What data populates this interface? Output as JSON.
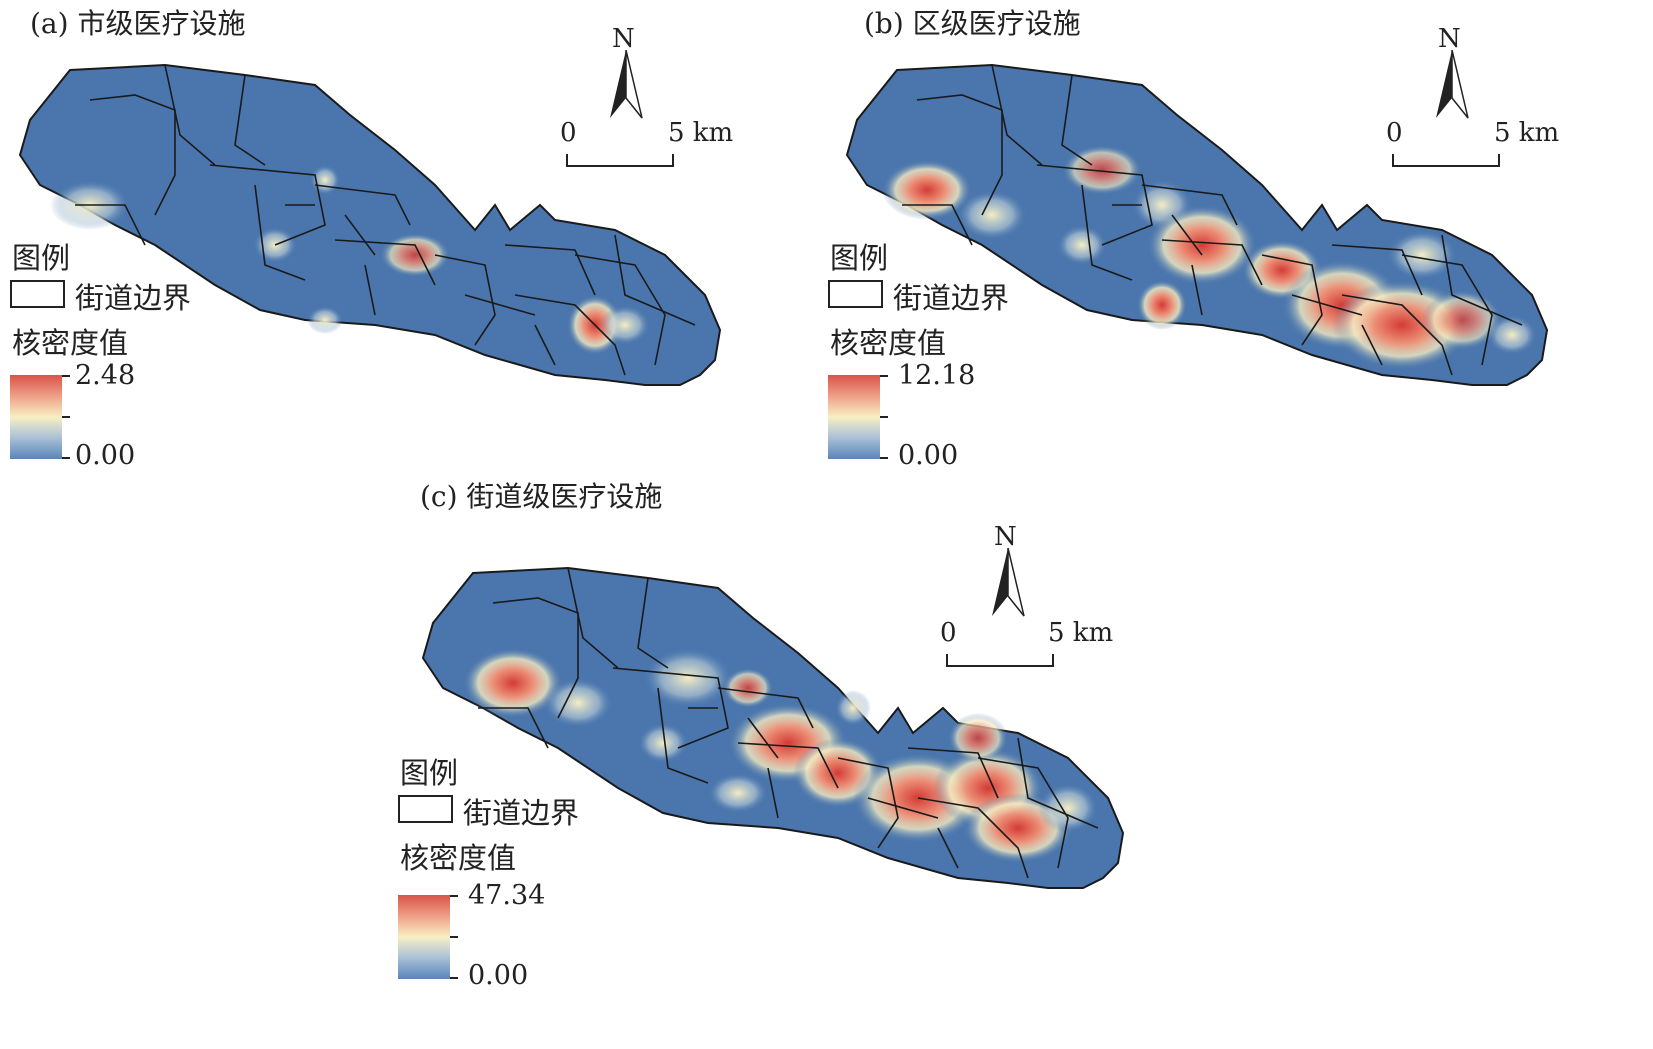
{
  "panels": [
    {
      "title": "(a) 市级医疗设施",
      "legend": {
        "title": "图例",
        "boundary_label": "街道边界",
        "density_label": "核密度值",
        "max": "2.48",
        "min": "0.00"
      },
      "north": "N",
      "scale": {
        "zero": "0",
        "five": "5 km"
      },
      "hotspot_intensity": "low"
    },
    {
      "title": "(b) 区级医疗设施",
      "legend": {
        "title": "图例",
        "boundary_label": "街道边界",
        "density_label": "核密度值",
        "max": "12.18",
        "min": "0.00"
      },
      "north": "N",
      "scale": {
        "zero": "0",
        "five": "5 km"
      },
      "hotspot_intensity": "medium"
    },
    {
      "title": "(c) 街道级医疗设施",
      "legend": {
        "title": "图例",
        "boundary_label": "街道边界",
        "density_label": "核密度值",
        "max": "47.34",
        "min": "0.00"
      },
      "north": "N",
      "scale": {
        "zero": "0",
        "five": "5 km"
      },
      "hotspot_intensity": "high"
    }
  ],
  "colors": {
    "base": "#4a76ad",
    "hot": "#d43b35",
    "warm": "#f3b79a",
    "mid": "#f5edc3",
    "boundary": "#1a1a1a"
  }
}
